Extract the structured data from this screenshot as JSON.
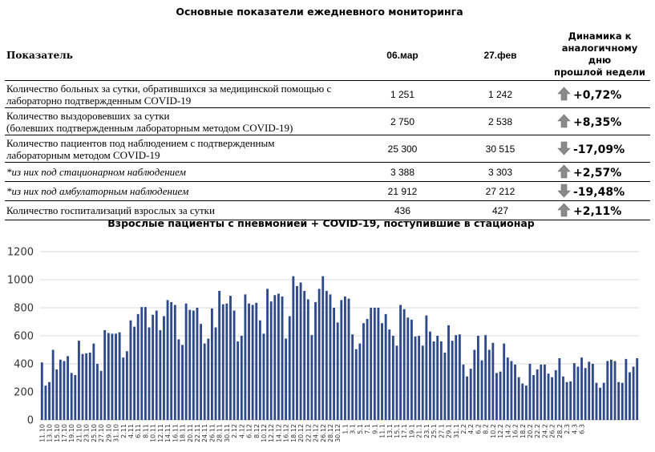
{
  "table": {
    "title": "Основные показатели ежедневного мониторинга",
    "headers": {
      "indicator": "Показатель",
      "date1": "06.мар",
      "date2": "27.фев",
      "dynamics": [
        "Динамика к",
        "аналогичному дню",
        "прошлой недели"
      ]
    },
    "rows": [
      {
        "label": [
          "Количество больных за сутки, обратившихся за медицинской помощью с",
          "лабораторно подтвержденным COVID-19"
        ],
        "v1": "1 251",
        "v2": "1 242",
        "dyn": "+0,72%",
        "direction": "up",
        "italic": false
      },
      {
        "label": [
          "Количество выздоровевших за сутки",
          "(болевших подтвержденным лабораторным методом COVID-19)"
        ],
        "v1": "2 750",
        "v2": "2 538",
        "dyn": "+8,35%",
        "direction": "up",
        "italic": false
      },
      {
        "label": [
          "Количество пациентов под наблюдением с подтвержденным",
          "лабораторным методом COVID-19"
        ],
        "v1": "25 300",
        "v2": "30 515",
        "dyn": "-17,09%",
        "direction": "down",
        "italic": false
      },
      {
        "label": [
          "*из них под стационарном наблюдением"
        ],
        "v1": "3 388",
        "v2": "3 303",
        "dyn": "+2,57%",
        "direction": "up",
        "italic": true
      },
      {
        "label": [
          "*из них под амбулаторным наблюдением"
        ],
        "v1": "21 912",
        "v2": "27 212",
        "dyn": "-19,48%",
        "direction": "down",
        "italic": true
      },
      {
        "label": [
          "Количество госпитализаций взрослых за сутки"
        ],
        "v1": "436",
        "v2": "427",
        "dyn": "+2,11%",
        "direction": "up",
        "italic": false
      }
    ]
  },
  "chart_data": {
    "type": "bar",
    "title": "Взрослые пациенты с пневмонией + COVID-19, поступившие в стационар",
    "xlabel": "",
    "ylabel": "",
    "ylim": [
      0,
      1200
    ],
    "yticks": [
      0,
      200,
      400,
      600,
      800,
      1000,
      1200
    ],
    "grid": true,
    "legend": "none",
    "bar_color": "#2e4a8a",
    "x_tick_labels": [
      "11.10",
      "13.10",
      "15.10",
      "17.10",
      "19.10",
      "21.10",
      "23.10",
      "25.10",
      "27.10",
      "29.10",
      "31.10",
      "2.11",
      "4.11",
      "6.11",
      "8.11",
      "10.11",
      "12.11",
      "14.11",
      "16.11",
      "18.11",
      "20.11",
      "22.11",
      "24.11",
      "26.11",
      "28.11",
      "30.11",
      "2.12",
      "4.12",
      "6.12",
      "8.12",
      "10.12",
      "12.12",
      "14.12",
      "16.12",
      "18.12",
      "20.12",
      "22.12",
      "24.12",
      "26.12",
      "28.12",
      "30.12",
      "1.1",
      "3.1",
      "5.1",
      "7.1",
      "9.1",
      "11.1",
      "13.1",
      "15.1",
      "17.1",
      "19.1",
      "21.1",
      "23.1",
      "25.1",
      "27.1",
      "29.1",
      "31.1",
      "2.2",
      "4.2",
      "6.2",
      "8.2",
      "10.2",
      "12.2",
      "14.2",
      "16.2",
      "18.2",
      "20.2",
      "22.2",
      "24.2",
      "26.2",
      "28.2",
      "2.3",
      "4.3",
      "6.3"
    ],
    "values": [
      410,
      245,
      270,
      500,
      360,
      430,
      420,
      455,
      335,
      320,
      565,
      470,
      475,
      480,
      545,
      400,
      350,
      640,
      620,
      615,
      615,
      625,
      445,
      490,
      710,
      665,
      755,
      805,
      805,
      660,
      750,
      780,
      640,
      740,
      855,
      840,
      820,
      575,
      535,
      830,
      785,
      780,
      800,
      685,
      545,
      580,
      795,
      660,
      920,
      825,
      830,
      885,
      780,
      560,
      600,
      895,
      830,
      820,
      835,
      710,
      615,
      935,
      845,
      890,
      900,
      880,
      580,
      740,
      1025,
      955,
      980,
      920,
      860,
      605,
      840,
      935,
      1025,
      920,
      895,
      800,
      695,
      855,
      880,
      865,
      610,
      505,
      545,
      690,
      720,
      800,
      800,
      800,
      690,
      755,
      645,
      600,
      530,
      820,
      790,
      730,
      715,
      595,
      600,
      530,
      745,
      630,
      560,
      600,
      560,
      480,
      675,
      565,
      605,
      610,
      395,
      310,
      365,
      500,
      600,
      425,
      605,
      500,
      550,
      335,
      345,
      545,
      445,
      420,
      395,
      305,
      260,
      245,
      400,
      320,
      360,
      395,
      395,
      330,
      305,
      355,
      440,
      310,
      270,
      275,
      405,
      380,
      445,
      370,
      415,
      400,
      265,
      230,
      265,
      420,
      430,
      420,
      270,
      265,
      435,
      340,
      380,
      440
    ]
  }
}
